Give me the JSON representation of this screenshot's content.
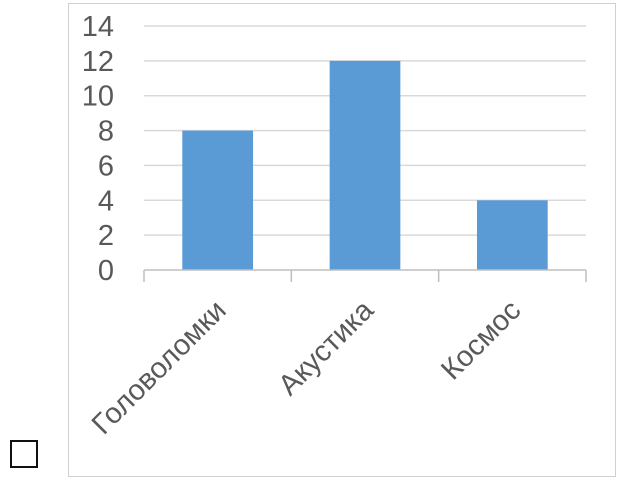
{
  "chart_data": {
    "type": "bar",
    "categories": [
      "Головоломки",
      "Акустика",
      "Космос"
    ],
    "values": [
      8,
      12,
      4
    ],
    "yticks": [
      0,
      2,
      4,
      6,
      8,
      10,
      12,
      14
    ],
    "ylim": [
      0,
      14
    ],
    "grid": true,
    "bar_color": "#5b9bd5",
    "gridline_color": "#d9d9d9",
    "text_color": "#595959"
  },
  "checkbox": {
    "checked": false
  }
}
